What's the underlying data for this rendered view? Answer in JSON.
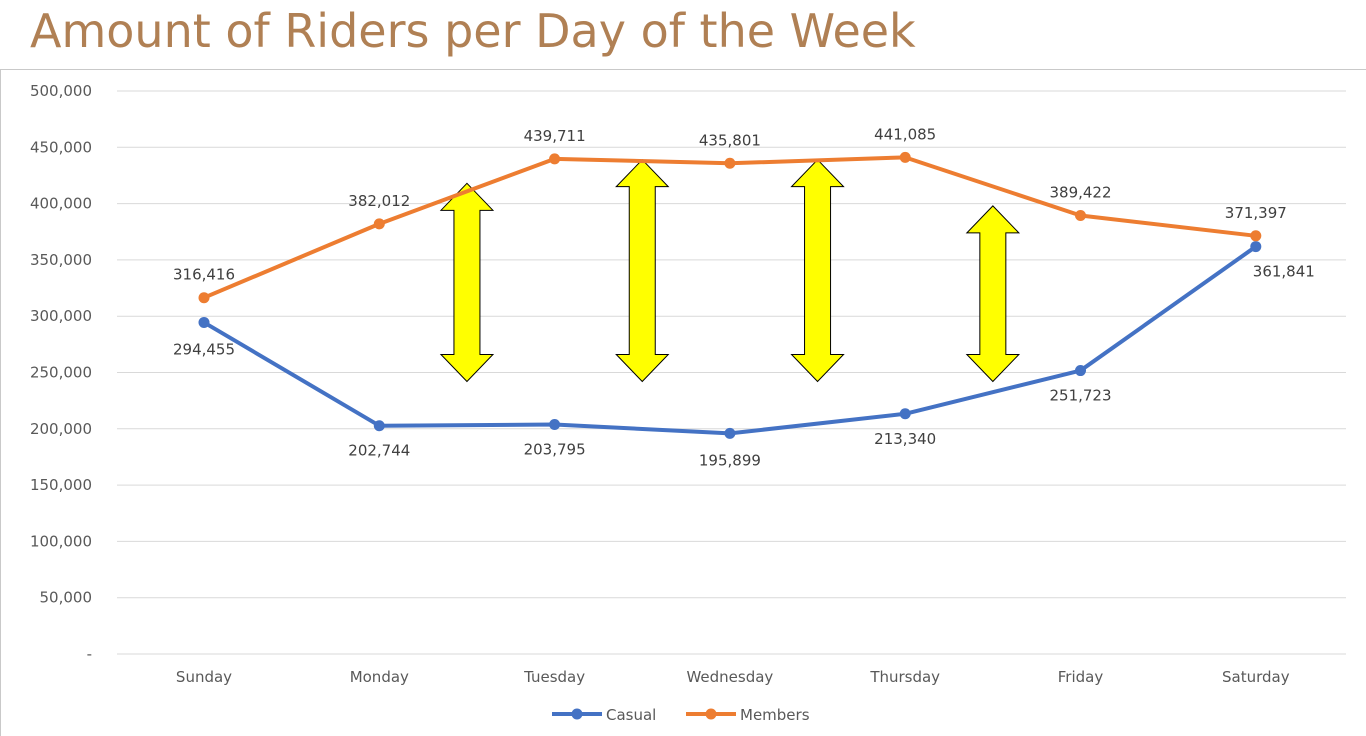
{
  "header": {
    "title": "Amount of Riders per Day of the Week"
  },
  "colors": {
    "casual": "#4472c4",
    "members": "#ed7d31",
    "arrow_fill": "#ffff00",
    "arrow_stroke": "#000000",
    "grid": "#d9d9d9"
  },
  "chart_data": {
    "type": "line",
    "title": "Amount of Riders per Day of the Week",
    "categories": [
      "Sunday",
      "Monday",
      "Tuesday",
      "Wednesday",
      "Thursday",
      "Friday",
      "Saturday"
    ],
    "series": [
      {
        "name": "Casual",
        "values": [
          294455,
          202744,
          203795,
          195899,
          213340,
          251723,
          361841
        ],
        "labels": [
          "294,455",
          "202,744",
          "203,795",
          "195,899",
          "213,340",
          "251,723",
          "361,841"
        ]
      },
      {
        "name": "Members",
        "values": [
          316416,
          382012,
          439711,
          435801,
          441085,
          389422,
          371397
        ],
        "labels": [
          "316,416",
          "382,012",
          "439,711",
          "435,801",
          "441,085",
          "389,422",
          "371,397"
        ]
      }
    ],
    "ylim": [
      0,
      500000
    ],
    "yticks": [
      0,
      50000,
      100000,
      150000,
      200000,
      250000,
      300000,
      350000,
      400000,
      450000,
      500000
    ],
    "ytick_labels": [
      "-",
      "50,000",
      "100,000",
      "150,000",
      "200,000",
      "250,000",
      "300,000",
      "350,000",
      "400,000",
      "450,000",
      "500,000"
    ],
    "grid": true,
    "legend": "bottom-center",
    "annotations": [
      {
        "type": "double-arrow",
        "between": [
          "Monday",
          "Tuesday"
        ],
        "from": 242000,
        "to": 418000
      },
      {
        "type": "double-arrow",
        "between": [
          "Tuesday",
          "Wednesday"
        ],
        "from": 242000,
        "to": 439000
      },
      {
        "type": "double-arrow",
        "between": [
          "Wednesday",
          "Thursday"
        ],
        "from": 242000,
        "to": 439000
      },
      {
        "type": "double-arrow",
        "between": [
          "Thursday",
          "Friday"
        ],
        "from": 242000,
        "to": 398000
      }
    ]
  }
}
